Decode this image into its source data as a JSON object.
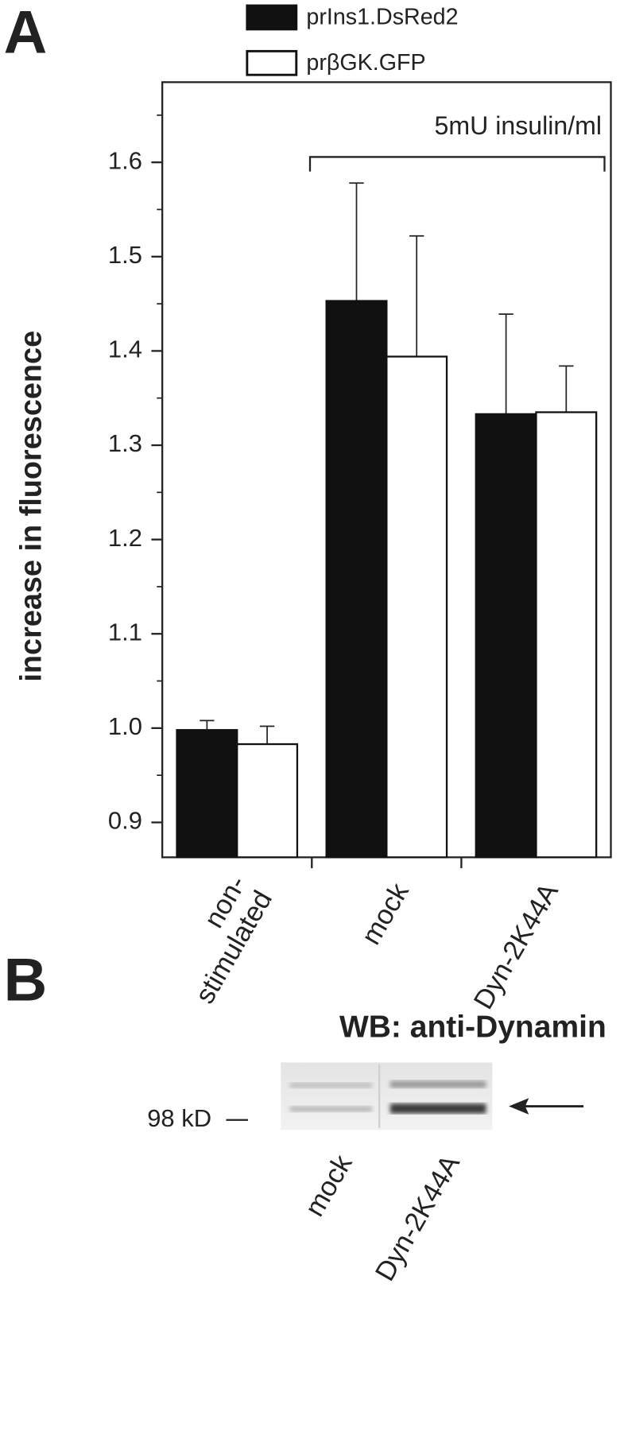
{
  "chart_data": {
    "type": "bar",
    "panel_label": "A",
    "ylabel": "increase in fluorescence",
    "categories": [
      "non-\nstimulated",
      "mock",
      "Dyn-2K44A"
    ],
    "series": [
      {
        "name": "prIns1.DsRed2",
        "color": "#111111",
        "values": [
          0.998,
          1.453,
          1.333
        ],
        "errors": [
          0.01,
          0.125,
          0.106
        ]
      },
      {
        "name": "prβGK.GFP",
        "color": "#ffffff",
        "values": [
          0.983,
          1.394,
          1.335
        ],
        "errors": [
          0.019,
          0.128,
          0.049
        ]
      }
    ],
    "ylim": [
      0.863,
      1.685
    ],
    "yticks": [
      0.9,
      {
        "value": 1,
        "label": "1.0"
      },
      1.1,
      1.2,
      1.3,
      1.4,
      1.5,
      1.6
    ],
    "yticks_minor": [
      0.95,
      1.05,
      1.15,
      1.25,
      1.35,
      1.45,
      1.55,
      1.65
    ],
    "annotation": "5mU insulin/ml"
  },
  "blot": {
    "panel_label": "B",
    "title": "WB: anti-Dynamin",
    "marker": "98 kD",
    "lanes": [
      "mock",
      "Dyn-2K44A"
    ]
  }
}
